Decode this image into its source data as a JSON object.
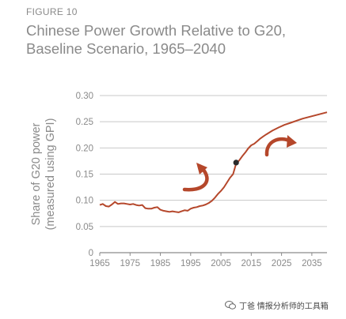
{
  "figure_label": "FIGURE 10",
  "title_line1": "Chinese Power Growth Relative to G20,",
  "title_line2": "Baseline Scenario, 1965–2040",
  "watermark": "丁爸 情报分析师的工具箱",
  "colors": {
    "line": "#b5472b",
    "grid": "#c8c8c8",
    "axis": "#8a8a8a",
    "text": "#8a8a8a",
    "dot": "#2a2a2a",
    "arrow": "#b5472b"
  },
  "chart_data": {
    "type": "line",
    "title": "Chinese Power Growth Relative to G20, Baseline Scenario, 1965–2040",
    "xlabel": "",
    "ylabel": "Share of G20 power (measured using GPI)",
    "ylabel_line1": "Share of G20 power",
    "ylabel_line2": "(measured using GPI)",
    "xlim": [
      1965,
      2040
    ],
    "ylim": [
      0,
      0.3
    ],
    "x_ticks": [
      "1965",
      "1975",
      "1985",
      "1995",
      "2005",
      "2015",
      "2025",
      "2035"
    ],
    "y_ticks": [
      "0",
      "0.05",
      "0.10",
      "0.15",
      "0.20",
      "0.25",
      "0.30"
    ],
    "grid": "horizontal",
    "legend": "none",
    "series": [
      {
        "x": [
          1965,
          1966,
          1967,
          1968,
          1969,
          1970,
          1971,
          1972,
          1973,
          1974,
          1975,
          1976,
          1977,
          1978,
          1979,
          1980,
          1981,
          1982,
          1983,
          1984,
          1985,
          1986,
          1987,
          1988,
          1989,
          1990,
          1991,
          1992,
          1993,
          1994,
          1995,
          1996,
          1997,
          1998,
          1999,
          2000,
          2001,
          2002,
          2003,
          2004,
          2005,
          2006,
          2007,
          2008,
          2009,
          2010,
          2011,
          2012,
          2013,
          2014,
          2015,
          2016,
          2017,
          2018,
          2019,
          2020,
          2022,
          2024,
          2026,
          2028,
          2030,
          2032,
          2034,
          2036,
          2038,
          2040
        ],
        "values": [
          0.091,
          0.093,
          0.089,
          0.088,
          0.092,
          0.097,
          0.093,
          0.094,
          0.094,
          0.093,
          0.092,
          0.093,
          0.091,
          0.09,
          0.091,
          0.085,
          0.084,
          0.084,
          0.086,
          0.087,
          0.082,
          0.08,
          0.079,
          0.078,
          0.079,
          0.078,
          0.077,
          0.079,
          0.081,
          0.08,
          0.084,
          0.086,
          0.087,
          0.089,
          0.09,
          0.092,
          0.095,
          0.099,
          0.105,
          0.112,
          0.118,
          0.125,
          0.134,
          0.143,
          0.15,
          0.17,
          0.176,
          0.184,
          0.191,
          0.199,
          0.205,
          0.208,
          0.213,
          0.218,
          0.222,
          0.226,
          0.233,
          0.239,
          0.244,
          0.248,
          0.252,
          0.256,
          0.259,
          0.262,
          0.265,
          0.268
        ]
      }
    ],
    "marker": {
      "x": 2010,
      "y": 0.172
    }
  }
}
